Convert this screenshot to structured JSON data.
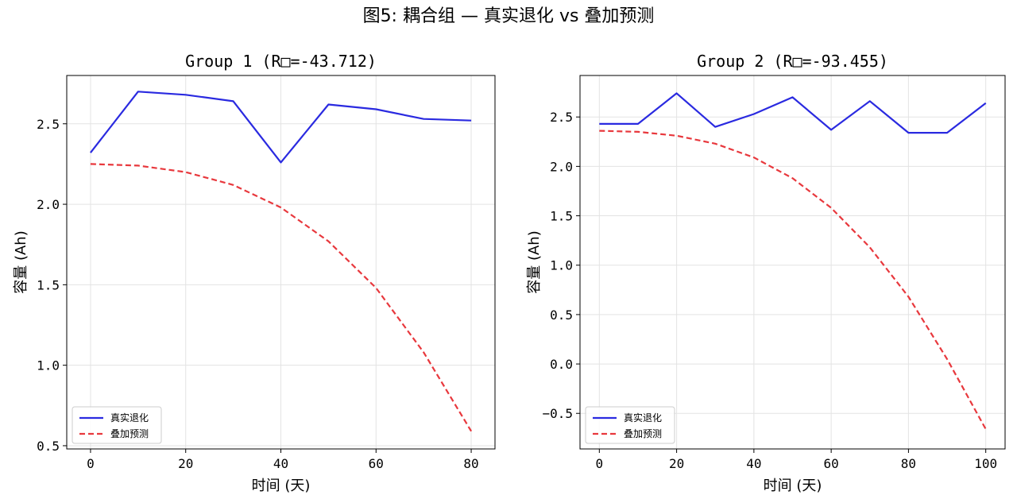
{
  "suptitle": "图5: 耦合组 — 真实退化 vs 叠加预测",
  "chart_data": [
    {
      "type": "line",
      "title": "Group 1 (R□=-43.712)",
      "xlabel": "时间 (天)",
      "ylabel": "容量 (Ah)",
      "xlim": [
        -5,
        85
      ],
      "ylim": [
        0.48,
        2.8
      ],
      "xticks": [
        0,
        20,
        40,
        60,
        80
      ],
      "xtick_labels": [
        "0",
        "20",
        "40",
        "60",
        "80"
      ],
      "yticks": [
        0.5,
        1.0,
        1.5,
        2.0,
        2.5
      ],
      "ytick_labels": [
        "0.5",
        "1.0",
        "1.5",
        "2.0",
        "2.5"
      ],
      "grid": true,
      "legend": "lower-left",
      "x": [
        0,
        10,
        20,
        30,
        40,
        50,
        60,
        70,
        80
      ],
      "series": [
        {
          "name": "真实退化",
          "color": "#2a2ae0",
          "style": "solid",
          "values": [
            2.32,
            2.7,
            2.68,
            2.64,
            2.26,
            2.62,
            2.59,
            2.53,
            2.52
          ]
        },
        {
          "name": "叠加预测",
          "color": "#e8383d",
          "style": "dashed",
          "values": [
            2.25,
            2.24,
            2.2,
            2.12,
            1.98,
            1.77,
            1.48,
            1.08,
            0.59
          ]
        }
      ]
    },
    {
      "type": "line",
      "title": "Group 2 (R□=-93.455)",
      "xlabel": "时间 (天)",
      "ylabel": "容量 (Ah)",
      "xlim": [
        -5,
        105
      ],
      "ylim": [
        -0.86,
        2.92
      ],
      "xticks": [
        0,
        20,
        40,
        60,
        80,
        100
      ],
      "xtick_labels": [
        "0",
        "20",
        "40",
        "60",
        "80",
        "100"
      ],
      "yticks": [
        -0.5,
        0.0,
        0.5,
        1.0,
        1.5,
        2.0,
        2.5
      ],
      "ytick_labels": [
        "−0.5",
        "0.0",
        "0.5",
        "1.0",
        "1.5",
        "2.0",
        "2.5"
      ],
      "grid": true,
      "legend": "lower-left",
      "x": [
        0,
        10,
        20,
        30,
        40,
        50,
        60,
        70,
        80,
        90,
        100
      ],
      "series": [
        {
          "name": "真实退化",
          "color": "#2a2ae0",
          "style": "solid",
          "values": [
            2.43,
            2.43,
            2.74,
            2.4,
            2.53,
            2.7,
            2.37,
            2.66,
            2.34,
            2.34,
            2.64
          ]
        },
        {
          "name": "叠加预测",
          "color": "#e8383d",
          "style": "dashed",
          "values": [
            2.36,
            2.35,
            2.31,
            2.23,
            2.09,
            1.88,
            1.58,
            1.18,
            0.68,
            0.05,
            -0.66
          ]
        }
      ]
    }
  ]
}
